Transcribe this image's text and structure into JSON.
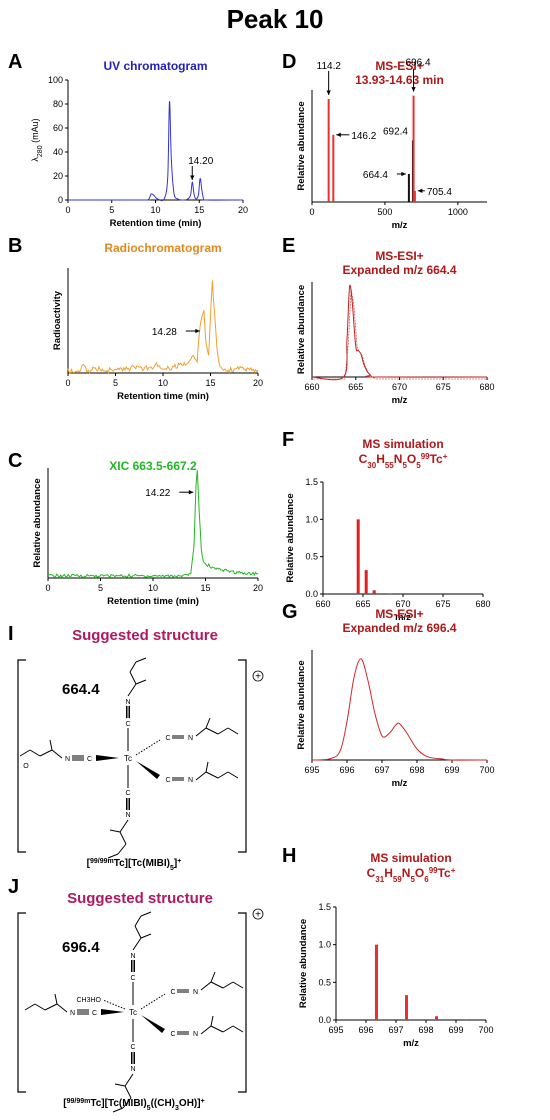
{
  "figure_title": "Peak 10",
  "chart_data": [
    {
      "id": "A",
      "panel_label": "A",
      "type": "line",
      "title": "UV chromatogram",
      "title_color": "#2222bb",
      "color": "#3333cc",
      "xlabel": "Retention time (min)",
      "ylabel": "λ280 (mAu)",
      "xlim": [
        0,
        20
      ],
      "ylim": [
        0,
        100
      ],
      "xticks": [
        0,
        5,
        10,
        15,
        20
      ],
      "yticks": [
        0,
        20,
        40,
        60,
        80,
        100
      ],
      "x": [
        0,
        8.5,
        9.2,
        9.5,
        9.8,
        10.2,
        11.0,
        11.4,
        11.6,
        11.8,
        12.1,
        12.5,
        13.0,
        13.6,
        14.0,
        14.2,
        14.4,
        14.6,
        14.9,
        15.1,
        15.3,
        15.5,
        15.8,
        20
      ],
      "y": [
        0,
        0,
        0.5,
        5,
        4,
        1,
        1,
        20,
        82,
        35,
        6,
        1,
        0,
        0.5,
        4,
        15,
        5,
        1,
        4,
        18,
        8,
        1,
        0,
        0
      ],
      "annotations": [
        {
          "text": "14.20",
          "x": 14.2,
          "y": 15
        }
      ]
    },
    {
      "id": "B",
      "panel_label": "B",
      "type": "line",
      "title": "Radiochromatogram",
      "title_color": "#e08a1e",
      "color": "#f0a030",
      "xlabel": "Retention time (min)",
      "ylabel": "Radioactivity",
      "xlim": [
        0,
        20
      ],
      "ylim": [
        0,
        100
      ],
      "xticks": [
        0,
        5,
        10,
        15,
        20
      ],
      "yticks": [],
      "x": [
        0,
        1.2,
        1.6,
        2.0,
        3,
        4,
        5,
        6,
        7,
        8,
        9,
        9.3,
        9.6,
        10,
        11,
        12,
        12.8,
        13.2,
        13.6,
        13.9,
        14.1,
        14.3,
        14.5,
        14.8,
        15.0,
        15.2,
        15.4,
        15.7,
        16.0,
        17,
        18,
        19,
        20
      ],
      "y": [
        2,
        2,
        8,
        2,
        4,
        2,
        4,
        3,
        6,
        4,
        5,
        12,
        5,
        6,
        5,
        8,
        10,
        18,
        12,
        45,
        52,
        58,
        30,
        18,
        55,
        88,
        60,
        20,
        6,
        3,
        4,
        3,
        3
      ],
      "noise": 2.5,
      "annotations": [
        {
          "text": "14.28",
          "x": 14.3,
          "y": 40
        }
      ]
    },
    {
      "id": "C",
      "panel_label": "C",
      "type": "line",
      "title": "XIC 663.5-667.2",
      "title_color": "#22b822",
      "color": "#22b822",
      "xlabel": "Retention time (min)",
      "ylabel": "Relative abundance",
      "xlim": [
        0,
        20
      ],
      "ylim": [
        0,
        100
      ],
      "xticks": [
        0,
        5,
        10,
        15,
        20
      ],
      "yticks": [],
      "x": [
        0,
        13.0,
        13.6,
        13.9,
        14.1,
        14.22,
        14.4,
        14.6,
        14.8,
        15.2,
        16,
        18,
        20
      ],
      "y": [
        2,
        2,
        4,
        30,
        85,
        98,
        60,
        25,
        15,
        12,
        8,
        5,
        4
      ],
      "noise": 1.5,
      "annotations": [
        {
          "text": "14.22",
          "x": 14.22,
          "y": 78
        }
      ]
    },
    {
      "id": "D",
      "panel_label": "D",
      "type": "bar",
      "title": "MS-ESI+",
      "subtitle": "13.93-14.63 min",
      "title_color": "#b01818",
      "color": "#e83030",
      "xlabel": "m/z",
      "ylabel": "Relative abundance",
      "xlim": [
        0,
        1200
      ],
      "ylim": [
        0,
        100
      ],
      "xticks": [
        0,
        500,
        1000
      ],
      "yticks": [],
      "x": [
        114.2,
        146.2,
        664.4,
        692.4,
        696.4,
        705.4
      ],
      "y": [
        92,
        60,
        25,
        55,
        95,
        10
      ],
      "black_index": [
        2,
        3
      ],
      "annotations": [
        {
          "text": "114.2",
          "x": 114.2,
          "y": 92
        },
        {
          "text": "146.2",
          "x": 146.2,
          "y": 60
        },
        {
          "text": "664.4",
          "x": 664.4,
          "y": 25
        },
        {
          "text": "692.4",
          "x": 692.4,
          "y": 55
        },
        {
          "text": "696.4",
          "x": 696.4,
          "y": 95
        },
        {
          "text": "705.4",
          "x": 705.4,
          "y": 10
        }
      ]
    },
    {
      "id": "E",
      "panel_label": "E",
      "type": "line",
      "title": "MS-ESI+",
      "subtitle": "Expanded m/z 664.4",
      "title_color": "#b01818",
      "color": "#c02020",
      "xlabel": "m/z",
      "ylabel": "Relative abundance",
      "xlim": [
        660,
        680
      ],
      "ylim": [
        0,
        100
      ],
      "xticks": [
        660,
        665,
        670,
        675,
        680
      ],
      "yticks": [],
      "x": [
        660,
        663.6,
        664.0,
        664.3,
        664.6,
        665.0,
        665.3,
        665.6,
        665.9,
        666.3,
        666.7,
        667.2,
        680
      ],
      "y": [
        0,
        0,
        40,
        95,
        78,
        32,
        28,
        24,
        14,
        6,
        2,
        0,
        0
      ]
    },
    {
      "id": "F",
      "panel_label": "F",
      "type": "bar",
      "title": "MS simulation",
      "formula": "C30H55N5O599Tc+",
      "title_color": "#b01818",
      "color": "#e02020",
      "xlabel": "m/z",
      "ylabel": "Relative abundance",
      "xlim": [
        660,
        680
      ],
      "ylim": [
        0,
        1.5
      ],
      "xticks": [
        660,
        665,
        670,
        675,
        680
      ],
      "yticks": [
        0.0,
        0.5,
        1.0,
        1.5
      ],
      "x": [
        664.4,
        665.4,
        666.4,
        667.4,
        668.4
      ],
      "y": [
        1.0,
        0.32,
        0.05,
        0.01,
        0.003
      ]
    },
    {
      "id": "G",
      "panel_label": "G",
      "type": "line",
      "title": "MS-ESI+",
      "subtitle": "Expanded m/z 696.4",
      "title_color": "#b01818",
      "color": "#d02828",
      "xlabel": "m/z",
      "ylabel": "Relative abundance",
      "xlim": [
        695,
        700
      ],
      "ylim": [
        0,
        100
      ],
      "xticks": [
        695,
        696,
        697,
        698,
        699,
        700
      ],
      "yticks": [],
      "x": [
        695,
        695.5,
        695.8,
        696.0,
        696.2,
        696.4,
        696.6,
        696.8,
        697.0,
        697.2,
        697.4,
        697.5,
        697.7,
        698.0,
        698.3,
        698.7,
        699,
        700
      ],
      "y": [
        0,
        1,
        8,
        35,
        75,
        92,
        72,
        42,
        22,
        24,
        32,
        33,
        25,
        10,
        3,
        1,
        0,
        0
      ]
    },
    {
      "id": "H",
      "panel_label": "H",
      "type": "bar",
      "title": "MS simulation",
      "formula": "C31H59N5O699Tc+",
      "title_color": "#b01818",
      "color": "#e83030",
      "xlabel": "m/z",
      "ylabel": "Relative abundance",
      "xlim": [
        695,
        700
      ],
      "ylim": [
        0,
        1.5
      ],
      "xticks": [
        695,
        696,
        697,
        698,
        699,
        700
      ],
      "yticks": [
        0.0,
        0.5,
        1.0,
        1.5
      ],
      "x": [
        696.35,
        697.35,
        698.35,
        699.35
      ],
      "y": [
        1.0,
        0.33,
        0.05,
        0.01
      ]
    }
  ],
  "structures": [
    {
      "id": "I",
      "panel_label": "I",
      "title": "Suggested structure",
      "title_color": "#b01860",
      "mass": "664.4",
      "metal": "Tc",
      "caption": "[99/99mTc][Tc(MIBI)5]+",
      "charge": "+"
    },
    {
      "id": "J",
      "panel_label": "J",
      "title": "Suggested structure",
      "title_color": "#b01860",
      "mass": "696.4",
      "metal": "Tc",
      "ligand_label": "CH3HO",
      "caption": "[99/99mTc][Tc(MIBI)5(CH3OH)]+",
      "charge": "+"
    }
  ]
}
